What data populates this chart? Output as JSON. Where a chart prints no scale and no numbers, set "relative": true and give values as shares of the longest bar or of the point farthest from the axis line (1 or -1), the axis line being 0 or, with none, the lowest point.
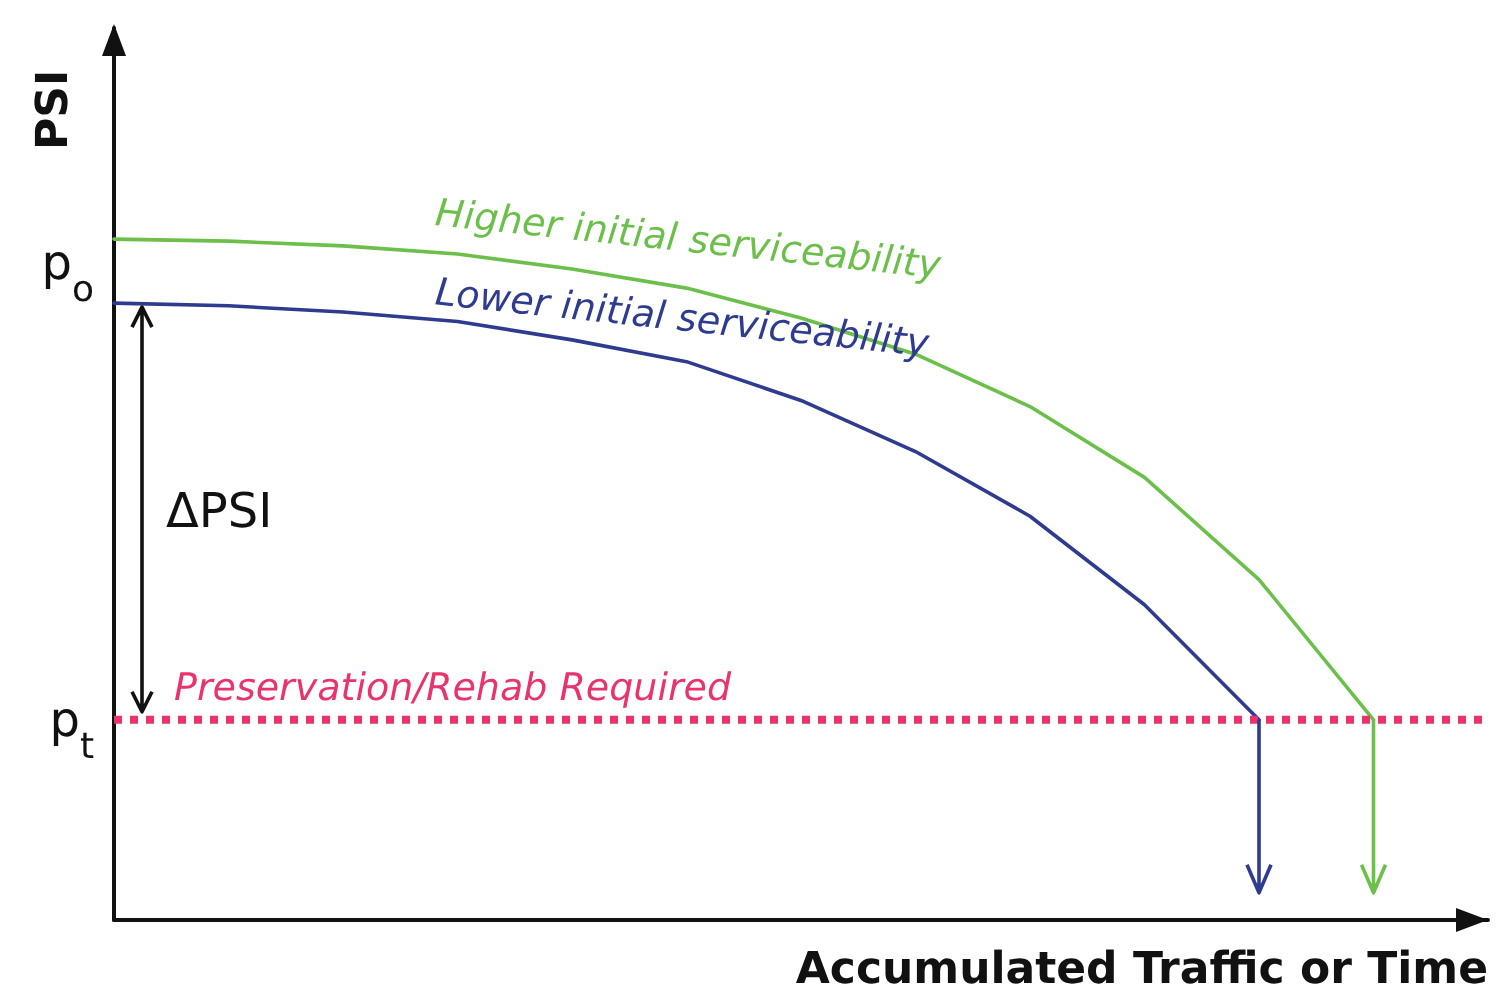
{
  "chart_data": {
    "type": "line",
    "relative": true,
    "xlabel": "Accumulated Traffic or Time",
    "ylabel": "PSI",
    "marker": "none",
    "line_style": "solid",
    "grid": false,
    "legend": false,
    "categories": [
      null,
      null,
      null,
      null,
      null,
      null,
      null,
      null,
      null,
      null,
      null,
      null,
      null
    ],
    "series": [
      {
        "name": "Higher initial serviceability",
        "color": "#6cbf4a",
        "values": [
          1,
          0.997,
          0.99,
          0.978,
          0.956,
          0.928,
          0.884,
          0.831,
          0.754,
          0.65,
          0.5,
          0.294,
          null
        ]
      },
      {
        "name": "Lower initial serviceability",
        "color": "#2e3b8f",
        "values": [
          0.906,
          0.902,
          0.893,
          0.879,
          0.852,
          0.82,
          0.763,
          0.688,
          0.593,
          0.463,
          0.294,
          null,
          null
        ]
      }
    ],
    "ref_lines": [
      {
        "axis": "y",
        "value": 0.294,
        "label": "Preservation/Rehab Required",
        "color": "#e8336d",
        "line_style": "dotted"
      }
    ],
    "annotations": [
      "p$_{o}$",
      "p$_{t}$",
      "ΔPSI"
    ]
  }
}
